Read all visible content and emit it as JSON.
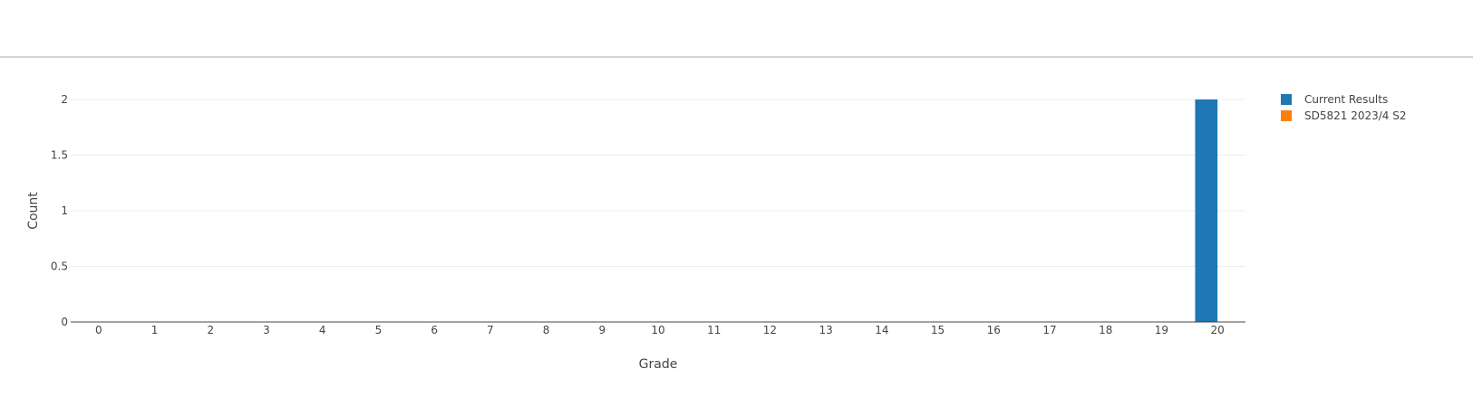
{
  "chart_data": {
    "type": "bar",
    "xlabel": "Grade",
    "ylabel": "Count",
    "categories": [
      0,
      1,
      2,
      3,
      4,
      5,
      6,
      7,
      8,
      9,
      10,
      11,
      12,
      13,
      14,
      15,
      16,
      17,
      18,
      19,
      20
    ],
    "ylim": [
      0,
      2
    ],
    "yticks": [
      0,
      0.5,
      1,
      1.5,
      2
    ],
    "grid": true,
    "legend_position": "top-right",
    "series": [
      {
        "name": "Current Results",
        "color": "#1f77b4",
        "values": [
          0,
          0,
          0,
          0,
          0,
          0,
          0,
          0,
          0,
          0,
          0,
          0,
          0,
          0,
          0,
          0,
          0,
          0,
          0,
          0,
          2
        ]
      },
      {
        "name": "SD5821 2023/4 S2",
        "color": "#ff7f0e",
        "values": [
          0,
          0,
          0,
          0,
          0,
          0,
          0,
          0,
          0,
          0,
          0,
          0,
          0,
          0,
          0,
          0,
          0,
          0,
          0,
          0,
          0
        ]
      }
    ]
  }
}
